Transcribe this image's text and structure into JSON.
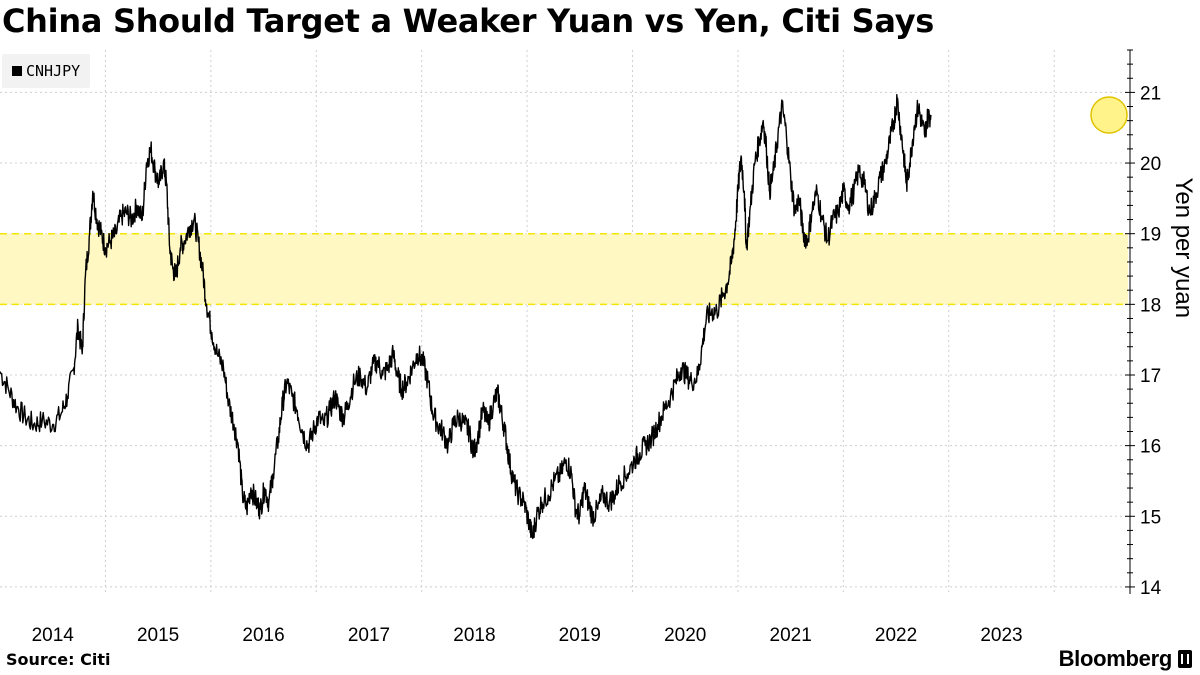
{
  "header": {
    "title": "China Should Target a Weaker Yuan vs Yen, Citi Says"
  },
  "legend": {
    "items": [
      {
        "label": "CNHJPY",
        "color": "#000000"
      }
    ]
  },
  "footer": {
    "source": "Source: Citi",
    "brand": "Bloomberg"
  },
  "chart_data": {
    "type": "line",
    "title": "China Should Target a Weaker Yuan vs Yen, Citi Says",
    "ylabel": "Yen per yuan",
    "xlabel": "",
    "ylim": [
      13.9,
      21.6
    ],
    "xlim": [
      2013.5,
      2024.2
    ],
    "y_ticks": [
      14,
      15,
      16,
      17,
      18,
      19,
      20,
      21
    ],
    "x_ticks": [
      {
        "label": "2014",
        "value": 2014
      },
      {
        "label": "2015",
        "value": 2015
      },
      {
        "label": "2016",
        "value": 2016
      },
      {
        "label": "2017",
        "value": 2017
      },
      {
        "label": "2018",
        "value": 2018
      },
      {
        "label": "2019",
        "value": 2019
      },
      {
        "label": "2020",
        "value": 2020
      },
      {
        "label": "2021",
        "value": 2021
      },
      {
        "label": "2022",
        "value": 2022
      },
      {
        "label": "2023",
        "value": 2023
      }
    ],
    "grid": true,
    "y_axis_side": "right",
    "legend_position": "top-left",
    "target_band": {
      "low": 18,
      "high": 19,
      "fill": "#fff8c2",
      "line_color": "#f2e600"
    },
    "highlight_point": {
      "x": 2024.02,
      "y": 20.68,
      "color": "#fff176"
    },
    "series": [
      {
        "name": "CNHJPY",
        "color": "#000000",
        "points": [
          [
            2013.5,
            17.05
          ],
          [
            2013.58,
            16.8
          ],
          [
            2013.66,
            16.55
          ],
          [
            2013.74,
            16.4
          ],
          [
            2013.82,
            16.3
          ],
          [
            2013.9,
            16.35
          ],
          [
            2014.0,
            16.3
          ],
          [
            2014.08,
            16.45
          ],
          [
            2014.14,
            16.7
          ],
          [
            2014.2,
            17.1
          ],
          [
            2014.24,
            17.7
          ],
          [
            2014.28,
            17.3
          ],
          [
            2014.31,
            18.4
          ],
          [
            2014.35,
            19.0
          ],
          [
            2014.38,
            19.6
          ],
          [
            2014.42,
            19.2
          ],
          [
            2014.46,
            19.0
          ],
          [
            2014.5,
            18.8
          ],
          [
            2014.55,
            18.9
          ],
          [
            2014.6,
            19.0
          ],
          [
            2014.65,
            19.25
          ],
          [
            2014.7,
            19.3
          ],
          [
            2014.75,
            19.2
          ],
          [
            2014.8,
            19.4
          ],
          [
            2014.85,
            19.2
          ],
          [
            2014.89,
            20.0
          ],
          [
            2014.93,
            20.2
          ],
          [
            2014.97,
            19.9
          ],
          [
            2015.01,
            19.7
          ],
          [
            2015.05,
            20.0
          ],
          [
            2015.08,
            19.7
          ],
          [
            2015.11,
            18.8
          ],
          [
            2015.14,
            18.5
          ],
          [
            2015.17,
            18.4
          ],
          [
            2015.21,
            18.8
          ],
          [
            2015.25,
            18.9
          ],
          [
            2015.3,
            19.1
          ],
          [
            2015.34,
            19.2
          ],
          [
            2015.38,
            18.9
          ],
          [
            2015.42,
            18.5
          ],
          [
            2015.46,
            18.0
          ],
          [
            2015.51,
            17.6
          ],
          [
            2015.56,
            17.3
          ],
          [
            2015.62,
            17.1
          ],
          [
            2015.67,
            16.6
          ],
          [
            2015.72,
            16.3
          ],
          [
            2015.76,
            16.0
          ],
          [
            2015.8,
            15.3
          ],
          [
            2015.84,
            15.1
          ],
          [
            2015.88,
            15.4
          ],
          [
            2015.93,
            15.2
          ],
          [
            2015.97,
            15.1
          ],
          [
            2016.01,
            15.4
          ],
          [
            2016.05,
            15.2
          ],
          [
            2016.09,
            15.6
          ],
          [
            2016.14,
            16.1
          ],
          [
            2016.18,
            16.6
          ],
          [
            2016.22,
            16.9
          ],
          [
            2016.27,
            16.7
          ],
          [
            2016.32,
            16.5
          ],
          [
            2016.37,
            16.2
          ],
          [
            2016.42,
            16.0
          ],
          [
            2016.47,
            16.2
          ],
          [
            2016.52,
            16.4
          ],
          [
            2016.57,
            16.3
          ],
          [
            2016.63,
            16.5
          ],
          [
            2016.68,
            16.7
          ],
          [
            2016.72,
            16.5
          ],
          [
            2016.76,
            16.4
          ],
          [
            2016.8,
            16.6
          ],
          [
            2016.86,
            16.9
          ],
          [
            2016.92,
            17.0
          ],
          [
            2016.98,
            16.8
          ],
          [
            2017.03,
            17.1
          ],
          [
            2017.08,
            17.2
          ],
          [
            2017.13,
            17.0
          ],
          [
            2017.18,
            17.1
          ],
          [
            2017.23,
            17.3
          ],
          [
            2017.27,
            17.0
          ],
          [
            2017.31,
            16.8
          ],
          [
            2017.36,
            16.9
          ],
          [
            2017.41,
            17.1
          ],
          [
            2017.46,
            17.3
          ],
          [
            2017.51,
            17.2
          ],
          [
            2017.56,
            16.9
          ],
          [
            2017.6,
            16.5
          ],
          [
            2017.65,
            16.3
          ],
          [
            2017.7,
            16.2
          ],
          [
            2017.75,
            16.0
          ],
          [
            2017.8,
            16.3
          ],
          [
            2017.85,
            16.4
          ],
          [
            2017.91,
            16.3
          ],
          [
            2017.95,
            16.2
          ],
          [
            2017.99,
            15.9
          ],
          [
            2018.03,
            16.1
          ],
          [
            2018.08,
            16.5
          ],
          [
            2018.13,
            16.3
          ],
          [
            2018.18,
            16.6
          ],
          [
            2018.22,
            16.75
          ],
          [
            2018.25,
            16.5
          ],
          [
            2018.29,
            16.2
          ],
          [
            2018.33,
            15.8
          ],
          [
            2018.37,
            15.5
          ],
          [
            2018.42,
            15.3
          ],
          [
            2018.47,
            15.2
          ],
          [
            2018.52,
            14.9
          ],
          [
            2018.55,
            14.7
          ],
          [
            2018.59,
            15.0
          ],
          [
            2018.64,
            15.2
          ],
          [
            2018.7,
            15.3
          ],
          [
            2018.76,
            15.5
          ],
          [
            2018.82,
            15.6
          ],
          [
            2018.87,
            15.8
          ],
          [
            2018.92,
            15.6
          ],
          [
            2018.96,
            15.1
          ],
          [
            2019.0,
            15.0
          ],
          [
            2019.04,
            15.4
          ],
          [
            2019.08,
            15.2
          ],
          [
            2019.12,
            15.0
          ],
          [
            2019.17,
            15.1
          ],
          [
            2019.22,
            15.3
          ],
          [
            2019.28,
            15.2
          ],
          [
            2019.33,
            15.3
          ],
          [
            2019.38,
            15.5
          ],
          [
            2019.45,
            15.6
          ],
          [
            2019.52,
            15.8
          ],
          [
            2019.57,
            15.9
          ],
          [
            2019.62,
            16.0
          ],
          [
            2019.68,
            16.1
          ],
          [
            2019.74,
            16.3
          ],
          [
            2019.8,
            16.5
          ],
          [
            2019.86,
            16.7
          ],
          [
            2019.91,
            16.9
          ],
          [
            2019.96,
            17.1
          ],
          [
            2020.01,
            17.0
          ],
          [
            2020.06,
            16.9
          ],
          [
            2020.12,
            17.0
          ],
          [
            2020.16,
            17.4
          ],
          [
            2020.2,
            17.8
          ],
          [
            2020.25,
            17.9
          ],
          [
            2020.3,
            17.9
          ],
          [
            2020.35,
            18.1
          ],
          [
            2020.4,
            18.3
          ],
          [
            2020.44,
            18.6
          ],
          [
            2020.47,
            19.0
          ],
          [
            2020.5,
            19.6
          ],
          [
            2020.53,
            20.1
          ],
          [
            2020.56,
            19.6
          ],
          [
            2020.58,
            18.8
          ],
          [
            2020.62,
            19.4
          ],
          [
            2020.66,
            20.0
          ],
          [
            2020.7,
            20.3
          ],
          [
            2020.74,
            20.6
          ],
          [
            2020.77,
            20.2
          ],
          [
            2020.8,
            19.6
          ],
          [
            2020.84,
            19.9
          ],
          [
            2020.88,
            20.4
          ],
          [
            2020.92,
            20.8
          ],
          [
            2020.96,
            20.4
          ],
          [
            2021.0,
            19.8
          ],
          [
            2021.04,
            19.3
          ],
          [
            2021.08,
            19.5
          ],
          [
            2021.12,
            19.0
          ],
          [
            2021.16,
            18.9
          ],
          [
            2021.2,
            19.3
          ],
          [
            2021.25,
            19.6
          ],
          [
            2021.3,
            19.2
          ],
          [
            2021.35,
            18.9
          ],
          [
            2021.4,
            19.2
          ],
          [
            2021.45,
            19.3
          ],
          [
            2021.5,
            19.6
          ],
          [
            2021.55,
            19.4
          ],
          [
            2021.6,
            19.6
          ],
          [
            2021.65,
            19.9
          ],
          [
            2021.7,
            19.7
          ],
          [
            2021.75,
            19.3
          ],
          [
            2021.8,
            19.5
          ],
          [
            2021.85,
            19.8
          ],
          [
            2021.9,
            20.0
          ],
          [
            2021.94,
            20.3
          ],
          [
            2021.98,
            20.6
          ],
          [
            2022.01,
            20.9
          ],
          [
            2022.05,
            20.4
          ],
          [
            2022.08,
            20.0
          ],
          [
            2022.1,
            19.7
          ],
          [
            2022.13,
            20.0
          ],
          [
            2022.17,
            20.5
          ],
          [
            2022.21,
            20.8
          ],
          [
            2022.24,
            20.6
          ],
          [
            2022.27,
            20.4
          ],
          [
            2022.3,
            20.65
          ],
          [
            2022.33,
            20.68
          ]
        ]
      }
    ]
  }
}
